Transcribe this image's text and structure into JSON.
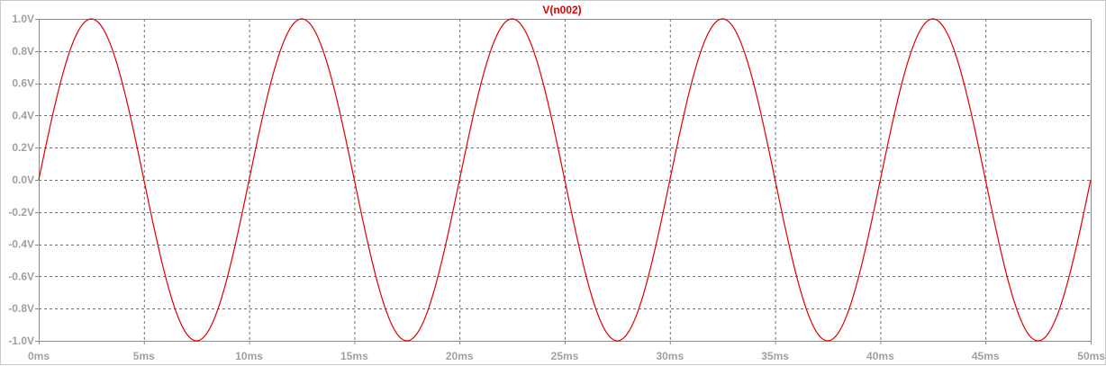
{
  "chart_data": {
    "type": "line",
    "title": "",
    "xlabel": "",
    "ylabel": "",
    "xlim": [
      0,
      50
    ],
    "ylim": [
      -1.0,
      1.0
    ],
    "grid": true,
    "x_ticks": [
      0,
      5,
      10,
      15,
      20,
      25,
      30,
      35,
      40,
      45,
      50
    ],
    "x_tick_labels": [
      "0ms",
      "5ms",
      "10ms",
      "15ms",
      "20ms",
      "25ms",
      "30ms",
      "35ms",
      "40ms",
      "45ms",
      "50ms"
    ],
    "y_ticks": [
      1.0,
      0.8,
      0.6,
      0.4,
      0.2,
      0.0,
      -0.2,
      -0.4,
      -0.6,
      -0.8,
      -1.0
    ],
    "y_tick_labels": [
      "1.0V",
      "0.8V",
      "0.6V",
      "0.4V",
      "0.2V",
      "0.0V",
      "-0.2V",
      "-0.4V",
      "-0.6V",
      "-0.8V",
      "-1.0V"
    ],
    "series": [
      {
        "name": "V(n002)",
        "color": "#e00000",
        "x": [
          0,
          2.5,
          5,
          7.5,
          10,
          12.5,
          15,
          17.5,
          20,
          22.5,
          25,
          27.5,
          30,
          32.5,
          35,
          37.5,
          40,
          42.5,
          45,
          47.5,
          50
        ],
        "y": [
          0.0,
          1.0,
          0.0,
          -1.0,
          0.0,
          1.0,
          0.0,
          -1.0,
          0.0,
          1.0,
          0.0,
          -1.0,
          0.0,
          1.0,
          0.0,
          -1.0,
          0.0,
          1.0,
          0.0,
          -1.0,
          0.0
        ]
      }
    ]
  }
}
